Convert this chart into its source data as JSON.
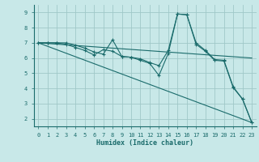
{
  "background_color": "#c8e8e8",
  "grid_color": "#a0c8c8",
  "line_color": "#1a6b6b",
  "xlabel": "Humidex (Indice chaleur)",
  "xlim": [
    -0.5,
    23.5
  ],
  "ylim": [
    1.5,
    9.5
  ],
  "yticks": [
    2,
    3,
    4,
    5,
    6,
    7,
    8,
    9
  ],
  "xticks": [
    0,
    1,
    2,
    3,
    4,
    5,
    6,
    7,
    8,
    9,
    10,
    11,
    12,
    13,
    14,
    15,
    16,
    17,
    18,
    19,
    20,
    21,
    22,
    23
  ],
  "lines": [
    {
      "x": [
        0,
        1,
        2,
        3,
        4,
        5,
        6,
        7,
        8,
        9,
        10,
        11,
        12,
        13,
        14,
        15,
        16,
        17,
        18,
        19,
        20,
        21,
        22,
        23
      ],
      "y": [
        7.0,
        7.0,
        7.0,
        7.0,
        6.85,
        6.65,
        6.4,
        6.25,
        7.2,
        6.1,
        6.05,
        5.95,
        5.7,
        5.5,
        6.5,
        8.9,
        8.85,
        7.0,
        6.5,
        5.9,
        5.85,
        4.1,
        3.3,
        1.75
      ]
    },
    {
      "x": [
        0,
        1,
        2,
        3,
        4,
        5,
        6,
        7,
        8,
        9,
        10,
        11,
        12,
        13,
        14,
        15,
        16,
        17,
        18,
        19,
        20,
        21,
        22,
        23
      ],
      "y": [
        7.0,
        7.0,
        7.0,
        6.9,
        6.7,
        6.5,
        6.2,
        6.55,
        6.45,
        6.1,
        6.05,
        5.85,
        5.65,
        4.85,
        6.3,
        8.9,
        8.85,
        6.9,
        6.45,
        5.85,
        5.8,
        4.05,
        3.3,
        1.75
      ]
    },
    {
      "x": [
        0,
        23
      ],
      "y": [
        7.0,
        1.75
      ]
    },
    {
      "x": [
        0,
        23
      ],
      "y": [
        7.0,
        6.0
      ]
    }
  ],
  "title_fontsize": 7,
  "xlabel_fontsize": 6,
  "tick_fontsize": 5
}
